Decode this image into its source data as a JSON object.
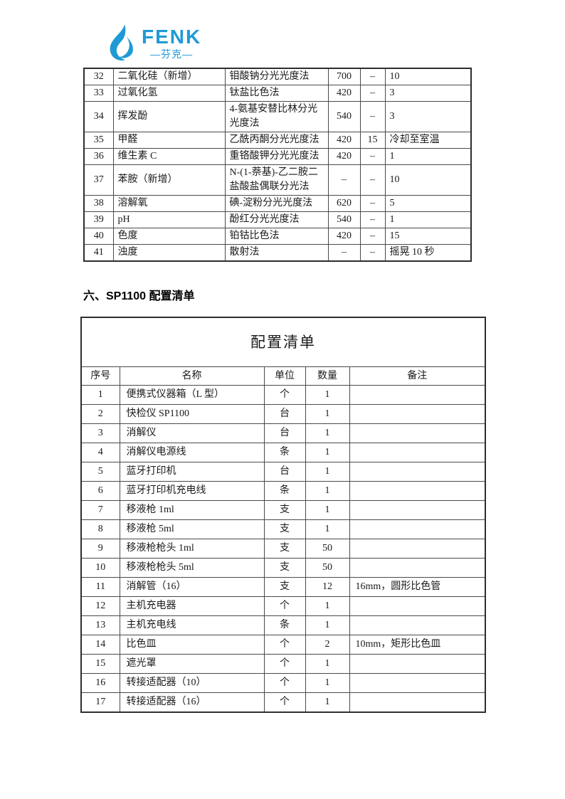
{
  "logo": {
    "brand": "FENK",
    "subtitle": "—芬克—",
    "color": "#1f9ad6"
  },
  "section_heading": "六、SP1100 配置清单",
  "params_table": {
    "rows": [
      [
        "32",
        "二氧化硅（新增）",
        "钼酸钠分光光度法",
        "700",
        "–",
        "10"
      ],
      [
        "33",
        "过氧化氢",
        "钛盐比色法",
        "420",
        "–",
        "3"
      ],
      [
        "34",
        "挥发酚",
        "4-氨基安替比林分光光度法",
        "540",
        "–",
        "3"
      ],
      [
        "35",
        "甲醛",
        "乙酰丙酮分光光度法",
        "420",
        "15",
        "冷却至室温"
      ],
      [
        "36",
        "维生素 C",
        "重铬酸钾分光光度法",
        "420",
        "–",
        "1"
      ],
      [
        "37",
        "苯胺（新增）",
        "N-(1-萘基)-乙二胺二盐酸盐偶联分光法",
        "–",
        "–",
        "10"
      ],
      [
        "38",
        "溶解氧",
        "碘-淀粉分光光度法",
        "620",
        "–",
        "5"
      ],
      [
        "39",
        "pH",
        "酚红分光光度法",
        "540",
        "–",
        "1"
      ],
      [
        "40",
        "色度",
        "铂钴比色法",
        "420",
        "–",
        "15"
      ],
      [
        "41",
        "浊度",
        "散射法",
        "–",
        "–",
        "摇晃 10 秒"
      ]
    ]
  },
  "config_table": {
    "title": "配置清单",
    "headers": [
      "序号",
      "名称",
      "单位",
      "数量",
      "备注"
    ],
    "rows": [
      [
        "1",
        "便携式仪器箱（L 型）",
        "个",
        "1",
        ""
      ],
      [
        "2",
        "快检仪 SP1100",
        "台",
        "1",
        ""
      ],
      [
        "3",
        "消解仪",
        "台",
        "1",
        ""
      ],
      [
        "4",
        "消解仪电源线",
        "条",
        "1",
        ""
      ],
      [
        "5",
        "蓝牙打印机",
        "台",
        "1",
        ""
      ],
      [
        "6",
        "蓝牙打印机充电线",
        "条",
        "1",
        ""
      ],
      [
        "7",
        "移液枪 1ml",
        "支",
        "1",
        ""
      ],
      [
        "8",
        "移液枪 5ml",
        "支",
        "1",
        ""
      ],
      [
        "9",
        "移液枪枪头 1ml",
        "支",
        "50",
        ""
      ],
      [
        "10",
        "移液枪枪头 5ml",
        "支",
        "50",
        ""
      ],
      [
        "11",
        "消解管（16）",
        "支",
        "12",
        "16mm，圆形比色管"
      ],
      [
        "12",
        "主机充电器",
        "个",
        "1",
        ""
      ],
      [
        "13",
        "主机充电线",
        "条",
        "1",
        ""
      ],
      [
        "14",
        "比色皿",
        "个",
        "2",
        "10mm，矩形比色皿"
      ],
      [
        "15",
        "遮光罩",
        "个",
        "1",
        ""
      ],
      [
        "16",
        "转接适配器（10）",
        "个",
        "1",
        ""
      ],
      [
        "17",
        "转接适配器（16）",
        "个",
        "1",
        ""
      ]
    ]
  }
}
